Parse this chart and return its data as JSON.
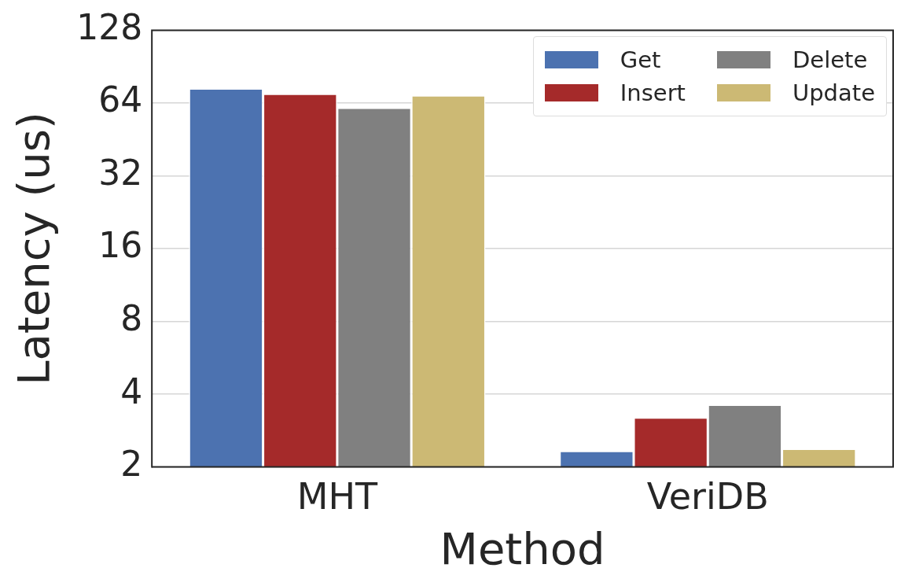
{
  "chart_data": {
    "type": "bar",
    "xlabel": "Method",
    "ylabel": "Latency (us)",
    "categories": [
      "MHT",
      "VeriDB"
    ],
    "series": [
      {
        "name": "Get",
        "color": "#4c72b0",
        "values": [
          73.5,
          2.33
        ]
      },
      {
        "name": "Insert",
        "color": "#a52a2a",
        "values": [
          69.8,
          3.2
        ]
      },
      {
        "name": "Delete",
        "color": "#808080",
        "values": [
          61.2,
          3.62
        ]
      },
      {
        "name": "Update",
        "color": "#ccb974",
        "values": [
          68.8,
          2.38
        ]
      }
    ],
    "log": "y",
    "ylim": [
      2,
      128
    ],
    "yticks": [
      2,
      4,
      8,
      16,
      32,
      64,
      128
    ],
    "grid": "y",
    "legend": "top right"
  }
}
